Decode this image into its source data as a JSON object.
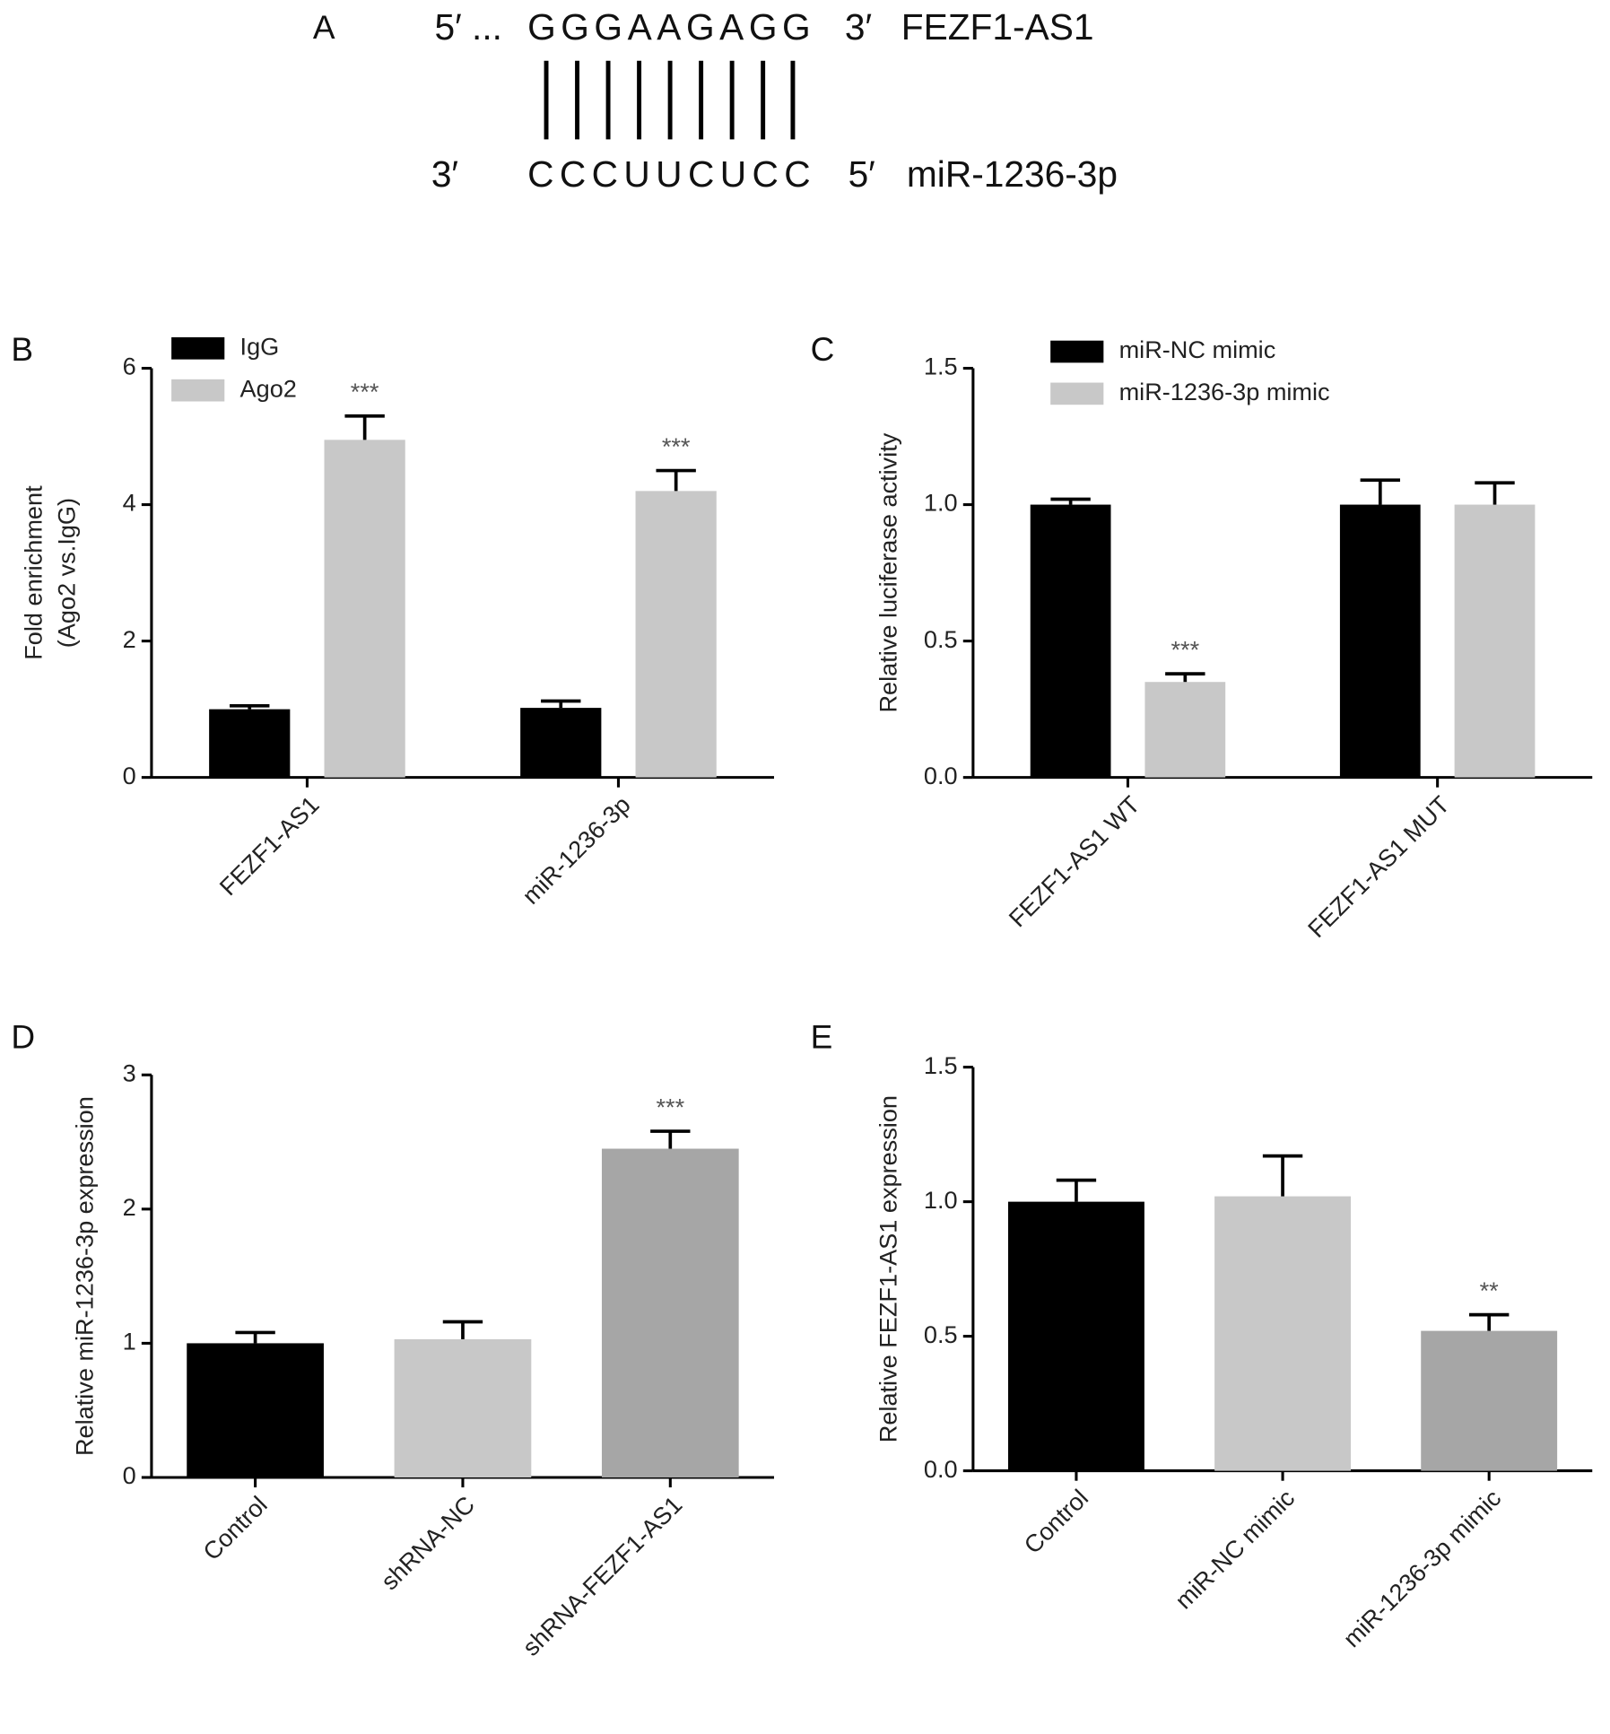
{
  "panel_a": {
    "panel": "A",
    "top": {
      "prime5": "5′ ...",
      "sequence": "GGGAAGAGG",
      "prime3": "3′",
      "name": "FEZF1-AS1"
    },
    "bottom": {
      "prime3": "3′",
      "sequence": "CCCUUCUCC",
      "prime5": "5′",
      "name": "miR-1236-3p"
    }
  },
  "chart_data": [
    {
      "type": "bar",
      "panel": "B",
      "ylabel": [
        "Fold enrichment",
        "(Ago2 vs.IgG)"
      ],
      "categories": [
        "FEZF1-AS1",
        "miR-1236-3p"
      ],
      "series": [
        {
          "name": "IgG",
          "color": "#000000",
          "values": [
            1.0,
            1.02
          ],
          "errors": [
            0.05,
            0.1
          ],
          "annotations": [
            null,
            null
          ]
        },
        {
          "name": "Ago2",
          "color": "#c8c8c8",
          "values": [
            4.95,
            4.2
          ],
          "errors": [
            0.35,
            0.3
          ],
          "annotations": [
            "***",
            "***"
          ]
        }
      ],
      "ylim": [
        0,
        6
      ],
      "yticks": [
        0,
        2,
        4,
        6
      ]
    },
    {
      "type": "bar",
      "panel": "C",
      "ylabel": "Relative luciferase activity",
      "categories": [
        "FEZF1-AS1 WT",
        "FEZF1-AS1 MUT"
      ],
      "series": [
        {
          "name": "miR-NC mimic",
          "color": "#000000",
          "values": [
            1.0,
            1.0
          ],
          "errors": [
            0.02,
            0.09
          ],
          "annotations": [
            null,
            null
          ]
        },
        {
          "name": "miR-1236-3p mimic",
          "color": "#c8c8c8",
          "values": [
            0.35,
            1.0
          ],
          "errors": [
            0.03,
            0.08
          ],
          "annotations": [
            "***",
            null
          ]
        }
      ],
      "ylim": [
        0,
        1.5
      ],
      "yticks": [
        {
          "value": 0,
          "label": "0.0"
        },
        0.5,
        {
          "value": 1,
          "label": "1.0"
        },
        1.5
      ]
    },
    {
      "type": "bar",
      "panel": "D",
      "ylabel": "Relative miR-1236-3p expression",
      "categories": [
        "Control",
        "shRNA-NC",
        "shRNA-FEZF1-AS1"
      ],
      "values": [
        1.0,
        1.03,
        2.45
      ],
      "errors": [
        0.08,
        0.13,
        0.13
      ],
      "colors": [
        "#000000",
        "#c8c8c8",
        "#a6a6a6"
      ],
      "annotations": [
        null,
        null,
        "***"
      ],
      "ylim": [
        0,
        3
      ],
      "yticks": [
        0,
        1,
        2,
        3
      ]
    },
    {
      "type": "bar",
      "panel": "E",
      "ylabel": "Relative FEZF1-AS1 expression",
      "categories": [
        "Control",
        "miR-NC mimic",
        "miR-1236-3p mimic"
      ],
      "values": [
        1.0,
        1.02,
        0.52
      ],
      "errors": [
        0.08,
        0.15,
        0.06
      ],
      "colors": [
        "#000000",
        "#c8c8c8",
        "#a6a6a6"
      ],
      "annotations": [
        null,
        null,
        "**"
      ],
      "ylim": [
        0,
        1.5
      ],
      "yticks": [
        {
          "value": 0,
          "label": "0.0"
        },
        0.5,
        {
          "value": 1,
          "label": "1.0"
        },
        1.5
      ]
    }
  ]
}
